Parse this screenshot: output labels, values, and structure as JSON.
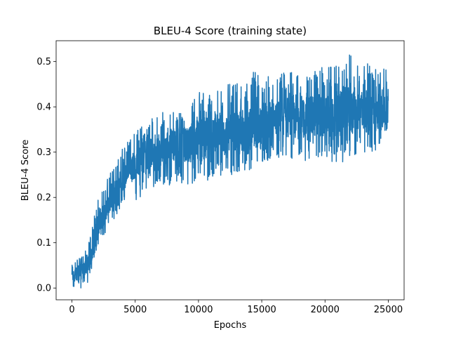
{
  "chart_data": {
    "type": "line",
    "title": "BLEU-4 Score (training state)",
    "xlabel": "Epochs",
    "ylabel": "BLEU-4 Score",
    "xlim": [
      -1250,
      26250
    ],
    "ylim": [
      -0.026,
      0.546
    ],
    "xticks": [
      0,
      5000,
      10000,
      15000,
      20000,
      25000
    ],
    "yticks": [
      0.0,
      0.1,
      0.2,
      0.3,
      0.4,
      0.5
    ],
    "grid": false,
    "series": [
      {
        "color": "#1f77b4",
        "x": [
          0,
          250,
          500,
          750,
          1000,
          1250,
          1500,
          1750,
          2000,
          2250,
          2500,
          2750,
          3000,
          3250,
          3500,
          3750,
          4000,
          4250,
          4500,
          4750,
          5000,
          5500,
          6000,
          6500,
          7000,
          7500,
          8000,
          8500,
          9000,
          9500,
          10000,
          11000,
          12000,
          13000,
          14000,
          15000,
          16000,
          17000,
          18000,
          19000,
          20000,
          21000,
          22000,
          23000,
          24000,
          25000
        ],
        "mean": [
          0.02,
          0.03,
          0.035,
          0.035,
          0.04,
          0.05,
          0.07,
          0.1,
          0.13,
          0.15,
          0.16,
          0.18,
          0.19,
          0.2,
          0.21,
          0.225,
          0.24,
          0.25,
          0.26,
          0.27,
          0.275,
          0.285,
          0.295,
          0.3,
          0.305,
          0.31,
          0.315,
          0.32,
          0.32,
          0.325,
          0.33,
          0.335,
          0.34,
          0.345,
          0.35,
          0.36,
          0.37,
          0.375,
          0.375,
          0.38,
          0.38,
          0.385,
          0.385,
          0.39,
          0.39,
          0.39
        ],
        "min": [
          0.0,
          0.0,
          0.0,
          0.0,
          0.005,
          0.01,
          0.03,
          0.06,
          0.08,
          0.1,
          0.11,
          0.13,
          0.14,
          0.15,
          0.16,
          0.17,
          0.18,
          0.19,
          0.19,
          0.2,
          0.19,
          0.2,
          0.21,
          0.22,
          0.22,
          0.23,
          0.22,
          0.23,
          0.21,
          0.23,
          0.24,
          0.23,
          0.25,
          0.25,
          0.26,
          0.27,
          0.29,
          0.27,
          0.29,
          0.27,
          0.29,
          0.27,
          0.29,
          0.29,
          0.3,
          0.34
        ],
        "max": [
          0.05,
          0.06,
          0.07,
          0.07,
          0.08,
          0.09,
          0.12,
          0.16,
          0.19,
          0.21,
          0.22,
          0.24,
          0.26,
          0.27,
          0.28,
          0.29,
          0.31,
          0.32,
          0.33,
          0.34,
          0.35,
          0.36,
          0.37,
          0.38,
          0.39,
          0.39,
          0.39,
          0.4,
          0.4,
          0.41,
          0.44,
          0.43,
          0.45,
          0.45,
          0.47,
          0.49,
          0.47,
          0.48,
          0.47,
          0.48,
          0.49,
          0.49,
          0.52,
          0.5,
          0.49,
          0.48
        ]
      }
    ]
  }
}
